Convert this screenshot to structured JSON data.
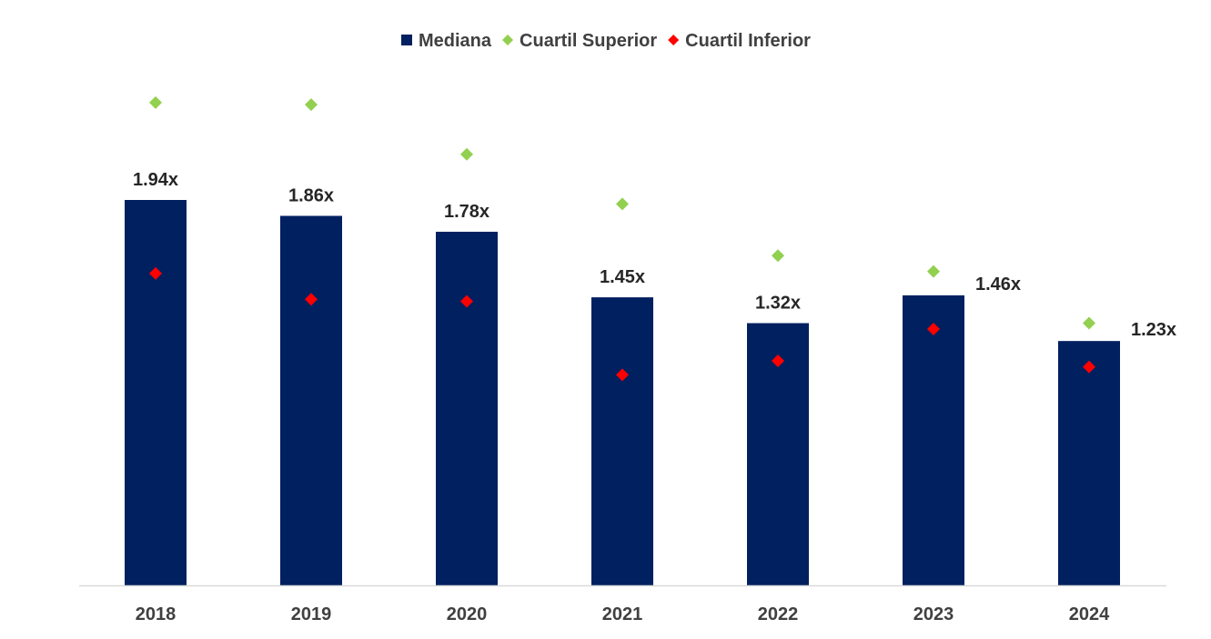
{
  "chart_data": {
    "type": "bar",
    "title": "",
    "xlabel": "",
    "ylabel": "",
    "categories": [
      "2018",
      "2019",
      "2020",
      "2021",
      "2022",
      "2023",
      "2024"
    ],
    "ylim": [
      0,
      2.8
    ],
    "grid": false,
    "legend_position": "top-center",
    "series": [
      {
        "name": "Mediana",
        "kind": "bar",
        "marker": "square",
        "color": "#002060",
        "values": [
          1.94,
          1.86,
          1.78,
          1.45,
          1.32,
          1.46,
          1.23
        ],
        "labels": [
          "1.94x",
          "1.86x",
          "1.78x",
          "1.45x",
          "1.32x",
          "1.46x",
          "1.23x"
        ]
      },
      {
        "name": "Cuartil Superior",
        "kind": "point",
        "marker": "diamond",
        "color": "#92D050",
        "values": [
          2.43,
          2.42,
          2.17,
          1.92,
          1.66,
          1.58,
          1.32
        ]
      },
      {
        "name": "Cuartil Inferior",
        "kind": "point",
        "marker": "diamond",
        "color": "#FF0000",
        "values": [
          1.57,
          1.44,
          1.43,
          1.06,
          1.13,
          1.29,
          1.1
        ]
      }
    ]
  }
}
